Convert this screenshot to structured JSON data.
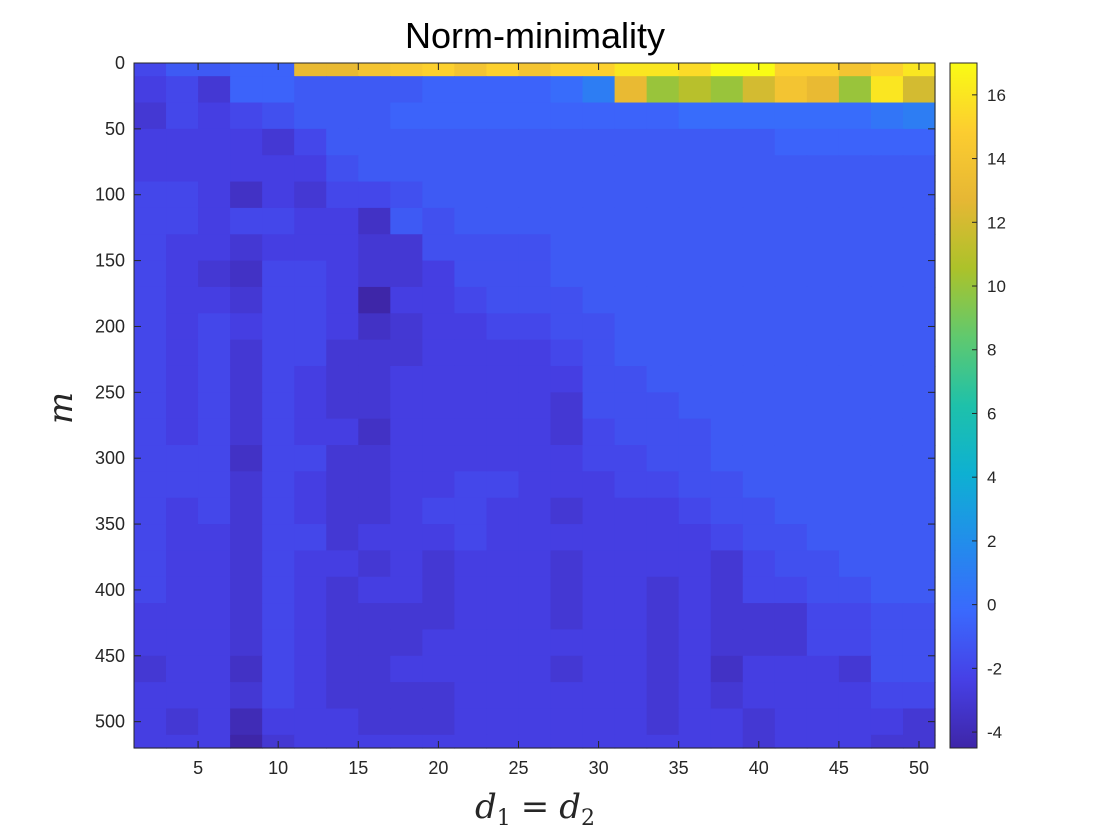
{
  "chart_data": {
    "type": "heatmap",
    "title": "Norm-minimality",
    "xlabel": "d_1 = d_2",
    "xlabel_parts": {
      "a": "d",
      "a_sub": "1",
      "eq": "=",
      "b": "d",
      "b_sub": "2"
    },
    "ylabel": "m",
    "x_range": [
      1,
      51
    ],
    "y_range": [
      0,
      520
    ],
    "x_ticks": [
      5,
      10,
      15,
      20,
      25,
      30,
      35,
      40,
      45,
      50
    ],
    "x_tick_labels": [
      "5",
      "10",
      "15",
      "20",
      "25",
      "30",
      "35",
      "40",
      "45",
      "50"
    ],
    "y_ticks": [
      0,
      50,
      100,
      150,
      200,
      250,
      300,
      350,
      400,
      450,
      500
    ],
    "y_tick_labels": [
      "0",
      "50",
      "100",
      "150",
      "200",
      "250",
      "300",
      "350",
      "400",
      "450",
      "500"
    ],
    "colorbar": {
      "range": [
        -4.5,
        17
      ],
      "ticks": [
        -4,
        -2,
        0,
        2,
        4,
        6,
        8,
        10,
        12,
        14,
        16
      ],
      "tick_labels": [
        "-4",
        "-2",
        "0",
        "2",
        "4",
        "6",
        "8",
        "10",
        "12",
        "14",
        "16"
      ],
      "colormap": "parula"
    },
    "grid": false,
    "x_centers": [
      2,
      4,
      6,
      8,
      10,
      12,
      14,
      16,
      18,
      20,
      22,
      24,
      26,
      28,
      30,
      32,
      34,
      36,
      38,
      40,
      42,
      44,
      46,
      48,
      50
    ],
    "y_centers": [
      0,
      20,
      40,
      60,
      80,
      100,
      120,
      140,
      160,
      180,
      200,
      220,
      240,
      260,
      280,
      300,
      320,
      340,
      360,
      380,
      400,
      420,
      440,
      460,
      480,
      500,
      520
    ],
    "values": [
      [
        -2,
        -1,
        -1,
        -0.5,
        -0.5,
        13,
        13,
        14,
        14.5,
        15,
        14,
        15,
        14,
        15,
        15,
        16,
        16,
        15.5,
        17,
        17,
        15,
        15,
        14,
        15,
        16
      ],
      [
        -2.5,
        -2,
        -3,
        -0.5,
        -0.5,
        -1,
        -1,
        -1,
        -1,
        -0.5,
        -0.5,
        -0.5,
        -0.5,
        0,
        1,
        13,
        10,
        11,
        10,
        12,
        14,
        13,
        10,
        16,
        12
      ],
      [
        -3,
        -2,
        -2.5,
        -2,
        -1.5,
        -1,
        -1,
        -1,
        -0.5,
        -0.5,
        -0.5,
        -0.5,
        -0.5,
        -0.5,
        -0.5,
        -0.5,
        -0.5,
        0,
        0,
        0,
        0,
        0,
        0,
        0.5,
        1
      ],
      [
        -2.5,
        -2.5,
        -2.5,
        -2.5,
        -3,
        -2,
        -1,
        -1,
        -1,
        -1,
        -1,
        -1,
        -1,
        -1,
        -1,
        -1,
        -1,
        -1,
        -1,
        -1,
        -0.5,
        -0.5,
        -0.5,
        -0.5,
        -0.5
      ],
      [
        -2.5,
        -2.5,
        -2.5,
        -2.5,
        -2.5,
        -2.5,
        -1.5,
        -1,
        -1,
        -1,
        -1,
        -1,
        -1,
        -1,
        -1,
        -1,
        -1,
        -1,
        -1,
        -1,
        -1,
        -1,
        -1,
        -1,
        -1
      ],
      [
        -2,
        -2,
        -2.5,
        -3.5,
        -2.5,
        -3,
        -2,
        -2,
        -1.5,
        -1,
        -1,
        -1,
        -1,
        -1,
        -1,
        -1,
        -1,
        -1,
        -1,
        -1,
        -1,
        -1,
        -1,
        -1,
        -1
      ],
      [
        -2,
        -2,
        -2.5,
        -2,
        -2,
        -2.5,
        -2.5,
        -3.5,
        -1,
        -1.5,
        -1,
        -1,
        -1,
        -1,
        -1,
        -1,
        -1,
        -1,
        -1,
        -1,
        -1,
        -1,
        -1,
        -1,
        -1
      ],
      [
        -2,
        -2.5,
        -2.5,
        -3,
        -2.5,
        -2.5,
        -2.5,
        -3,
        -3,
        -1.5,
        -1.5,
        -1.5,
        -1.5,
        -1,
        -1,
        -1,
        -1,
        -1,
        -1,
        -1,
        -1,
        -1,
        -1,
        -1,
        -1
      ],
      [
        -2,
        -2.5,
        -3,
        -3.5,
        -2,
        -2,
        -2.5,
        -3,
        -3,
        -2.5,
        -1.5,
        -1.5,
        -1.5,
        -1,
        -1,
        -1,
        -1,
        -1,
        -1,
        -1,
        -1,
        -1,
        -1,
        -1,
        -1
      ],
      [
        -2,
        -2.5,
        -2.5,
        -3,
        -2,
        -2,
        -2.5,
        -4.5,
        -2.5,
        -2.5,
        -2,
        -1.5,
        -1.5,
        -1.5,
        -1,
        -1,
        -1,
        -1,
        -1,
        -1,
        -1,
        -1,
        -1,
        -1,
        -1
      ],
      [
        -2,
        -2.5,
        -2,
        -2.5,
        -2,
        -2,
        -2.5,
        -3.5,
        -3,
        -2.5,
        -2.5,
        -2,
        -2,
        -1.5,
        -1.5,
        -1,
        -1,
        -1,
        -1,
        -1,
        -1,
        -1,
        -1,
        -1,
        -1
      ],
      [
        -2,
        -2.5,
        -2,
        -3,
        -2,
        -2,
        -3,
        -3,
        -3,
        -2.5,
        -2.5,
        -2.5,
        -2.5,
        -2,
        -1.5,
        -1,
        -1,
        -1,
        -1,
        -1,
        -1,
        -1,
        -1,
        -1,
        -1
      ],
      [
        -2,
        -2.5,
        -2,
        -3,
        -2,
        -2.5,
        -3,
        -3,
        -2.5,
        -2.5,
        -2.5,
        -2.5,
        -2.5,
        -2.5,
        -1.5,
        -1.5,
        -1,
        -1,
        -1,
        -1,
        -1,
        -1,
        -1,
        -1,
        -1
      ],
      [
        -2,
        -2.5,
        -2,
        -3,
        -2,
        -2.5,
        -3,
        -3,
        -2.5,
        -2.5,
        -2.5,
        -2.5,
        -2.5,
        -3,
        -1.5,
        -1.5,
        -1.5,
        -1,
        -1,
        -1,
        -1,
        -1,
        -1,
        -1,
        -1
      ],
      [
        -2,
        -2.5,
        -2,
        -3,
        -2,
        -2.5,
        -2.5,
        -3.5,
        -2.5,
        -2.5,
        -2.5,
        -2.5,
        -2.5,
        -3,
        -2,
        -1.5,
        -1.5,
        -1.5,
        -1,
        -1,
        -1,
        -1,
        -1,
        -1,
        -1
      ],
      [
        -2,
        -2,
        -2,
        -3.5,
        -2,
        -2,
        -3,
        -3,
        -2.5,
        -2.5,
        -2.5,
        -2.5,
        -2.5,
        -2.5,
        -2,
        -2,
        -1.5,
        -1.5,
        -1,
        -1,
        -1,
        -1,
        -1,
        -1,
        -1
      ],
      [
        -2,
        -2,
        -2,
        -3,
        -2,
        -2.5,
        -3,
        -3,
        -2.5,
        -2.5,
        -2,
        -2,
        -2.5,
        -2.5,
        -2.5,
        -2,
        -2,
        -1.5,
        -1.5,
        -1,
        -1,
        -1,
        -1,
        -1,
        -1
      ],
      [
        -2,
        -2.5,
        -2,
        -3,
        -2,
        -2.5,
        -3,
        -3,
        -2.5,
        -2,
        -2,
        -2.5,
        -2.5,
        -3,
        -2.5,
        -2.5,
        -2.5,
        -2,
        -1.5,
        -1.5,
        -1,
        -1,
        -1,
        -1,
        -1
      ],
      [
        -2,
        -2.5,
        -2.5,
        -3,
        -2,
        -2,
        -3,
        -2.5,
        -2.5,
        -2.5,
        -2,
        -2.5,
        -2.5,
        -2.5,
        -2.5,
        -2.5,
        -2.5,
        -2.5,
        -2,
        -1.5,
        -1.5,
        -1,
        -1,
        -1,
        -1
      ],
      [
        -2,
        -2.5,
        -2.5,
        -3,
        -2,
        -2.5,
        -2.5,
        -3,
        -2.5,
        -3,
        -2.5,
        -2.5,
        -2.5,
        -3,
        -2.5,
        -2.5,
        -2.5,
        -2.5,
        -3,
        -2,
        -1.5,
        -1.5,
        -1,
        -1,
        -1
      ],
      [
        -2,
        -2.5,
        -2.5,
        -3,
        -2,
        -2.5,
        -3,
        -2.5,
        -2.5,
        -3,
        -2.5,
        -2.5,
        -2.5,
        -3,
        -2.5,
        -2.5,
        -3,
        -2.5,
        -3,
        -2,
        -2,
        -1.5,
        -1.5,
        -1,
        -1
      ],
      [
        -2.5,
        -2.5,
        -2.5,
        -3,
        -2,
        -2.5,
        -3,
        -3,
        -3,
        -3,
        -2.5,
        -2.5,
        -2.5,
        -3,
        -2.5,
        -2.5,
        -3,
        -2.5,
        -3,
        -3,
        -3,
        -2,
        -2,
        -1.5,
        -1.5
      ],
      [
        -2.5,
        -2.5,
        -2.5,
        -3,
        -2,
        -2.5,
        -3,
        -3,
        -3,
        -2.5,
        -2.5,
        -2.5,
        -2.5,
        -2.5,
        -2.5,
        -2.5,
        -3,
        -2.5,
        -3,
        -3,
        -3,
        -2,
        -2,
        -1.5,
        -1.5
      ],
      [
        -3,
        -2.5,
        -2.5,
        -3.5,
        -2,
        -2.5,
        -3,
        -3,
        -2.5,
        -2.5,
        -2.5,
        -2.5,
        -2.5,
        -3,
        -2.5,
        -2.5,
        -3,
        -2.5,
        -3.5,
        -2.5,
        -2.5,
        -2.5,
        -3,
        -1.5,
        -1.5
      ],
      [
        -2.5,
        -2.5,
        -2.5,
        -3,
        -2,
        -2.5,
        -3,
        -3,
        -3,
        -3,
        -2.5,
        -2.5,
        -2.5,
        -2.5,
        -2.5,
        -2.5,
        -3,
        -2.5,
        -3,
        -2.5,
        -2.5,
        -2.5,
        -2.5,
        -2,
        -2
      ],
      [
        -2.5,
        -3,
        -2.5,
        -4,
        -2.5,
        -2.5,
        -2.5,
        -3,
        -3,
        -3,
        -2.5,
        -2.5,
        -2.5,
        -2.5,
        -2.5,
        -2.5,
        -3,
        -2.5,
        -2.5,
        -3,
        -2.5,
        -2.5,
        -2.5,
        -2.5,
        -3
      ],
      [
        -2.5,
        -2.5,
        -2.5,
        -4.5,
        -3,
        -2.5,
        -2.5,
        -2.5,
        -2.5,
        -2.5,
        -2.5,
        -2.5,
        -2.5,
        -2.5,
        -2.5,
        -2.5,
        -2.5,
        -2.5,
        -2.5,
        -3,
        -2.5,
        -2.5,
        -2.5,
        -3,
        -3
      ]
    ]
  }
}
